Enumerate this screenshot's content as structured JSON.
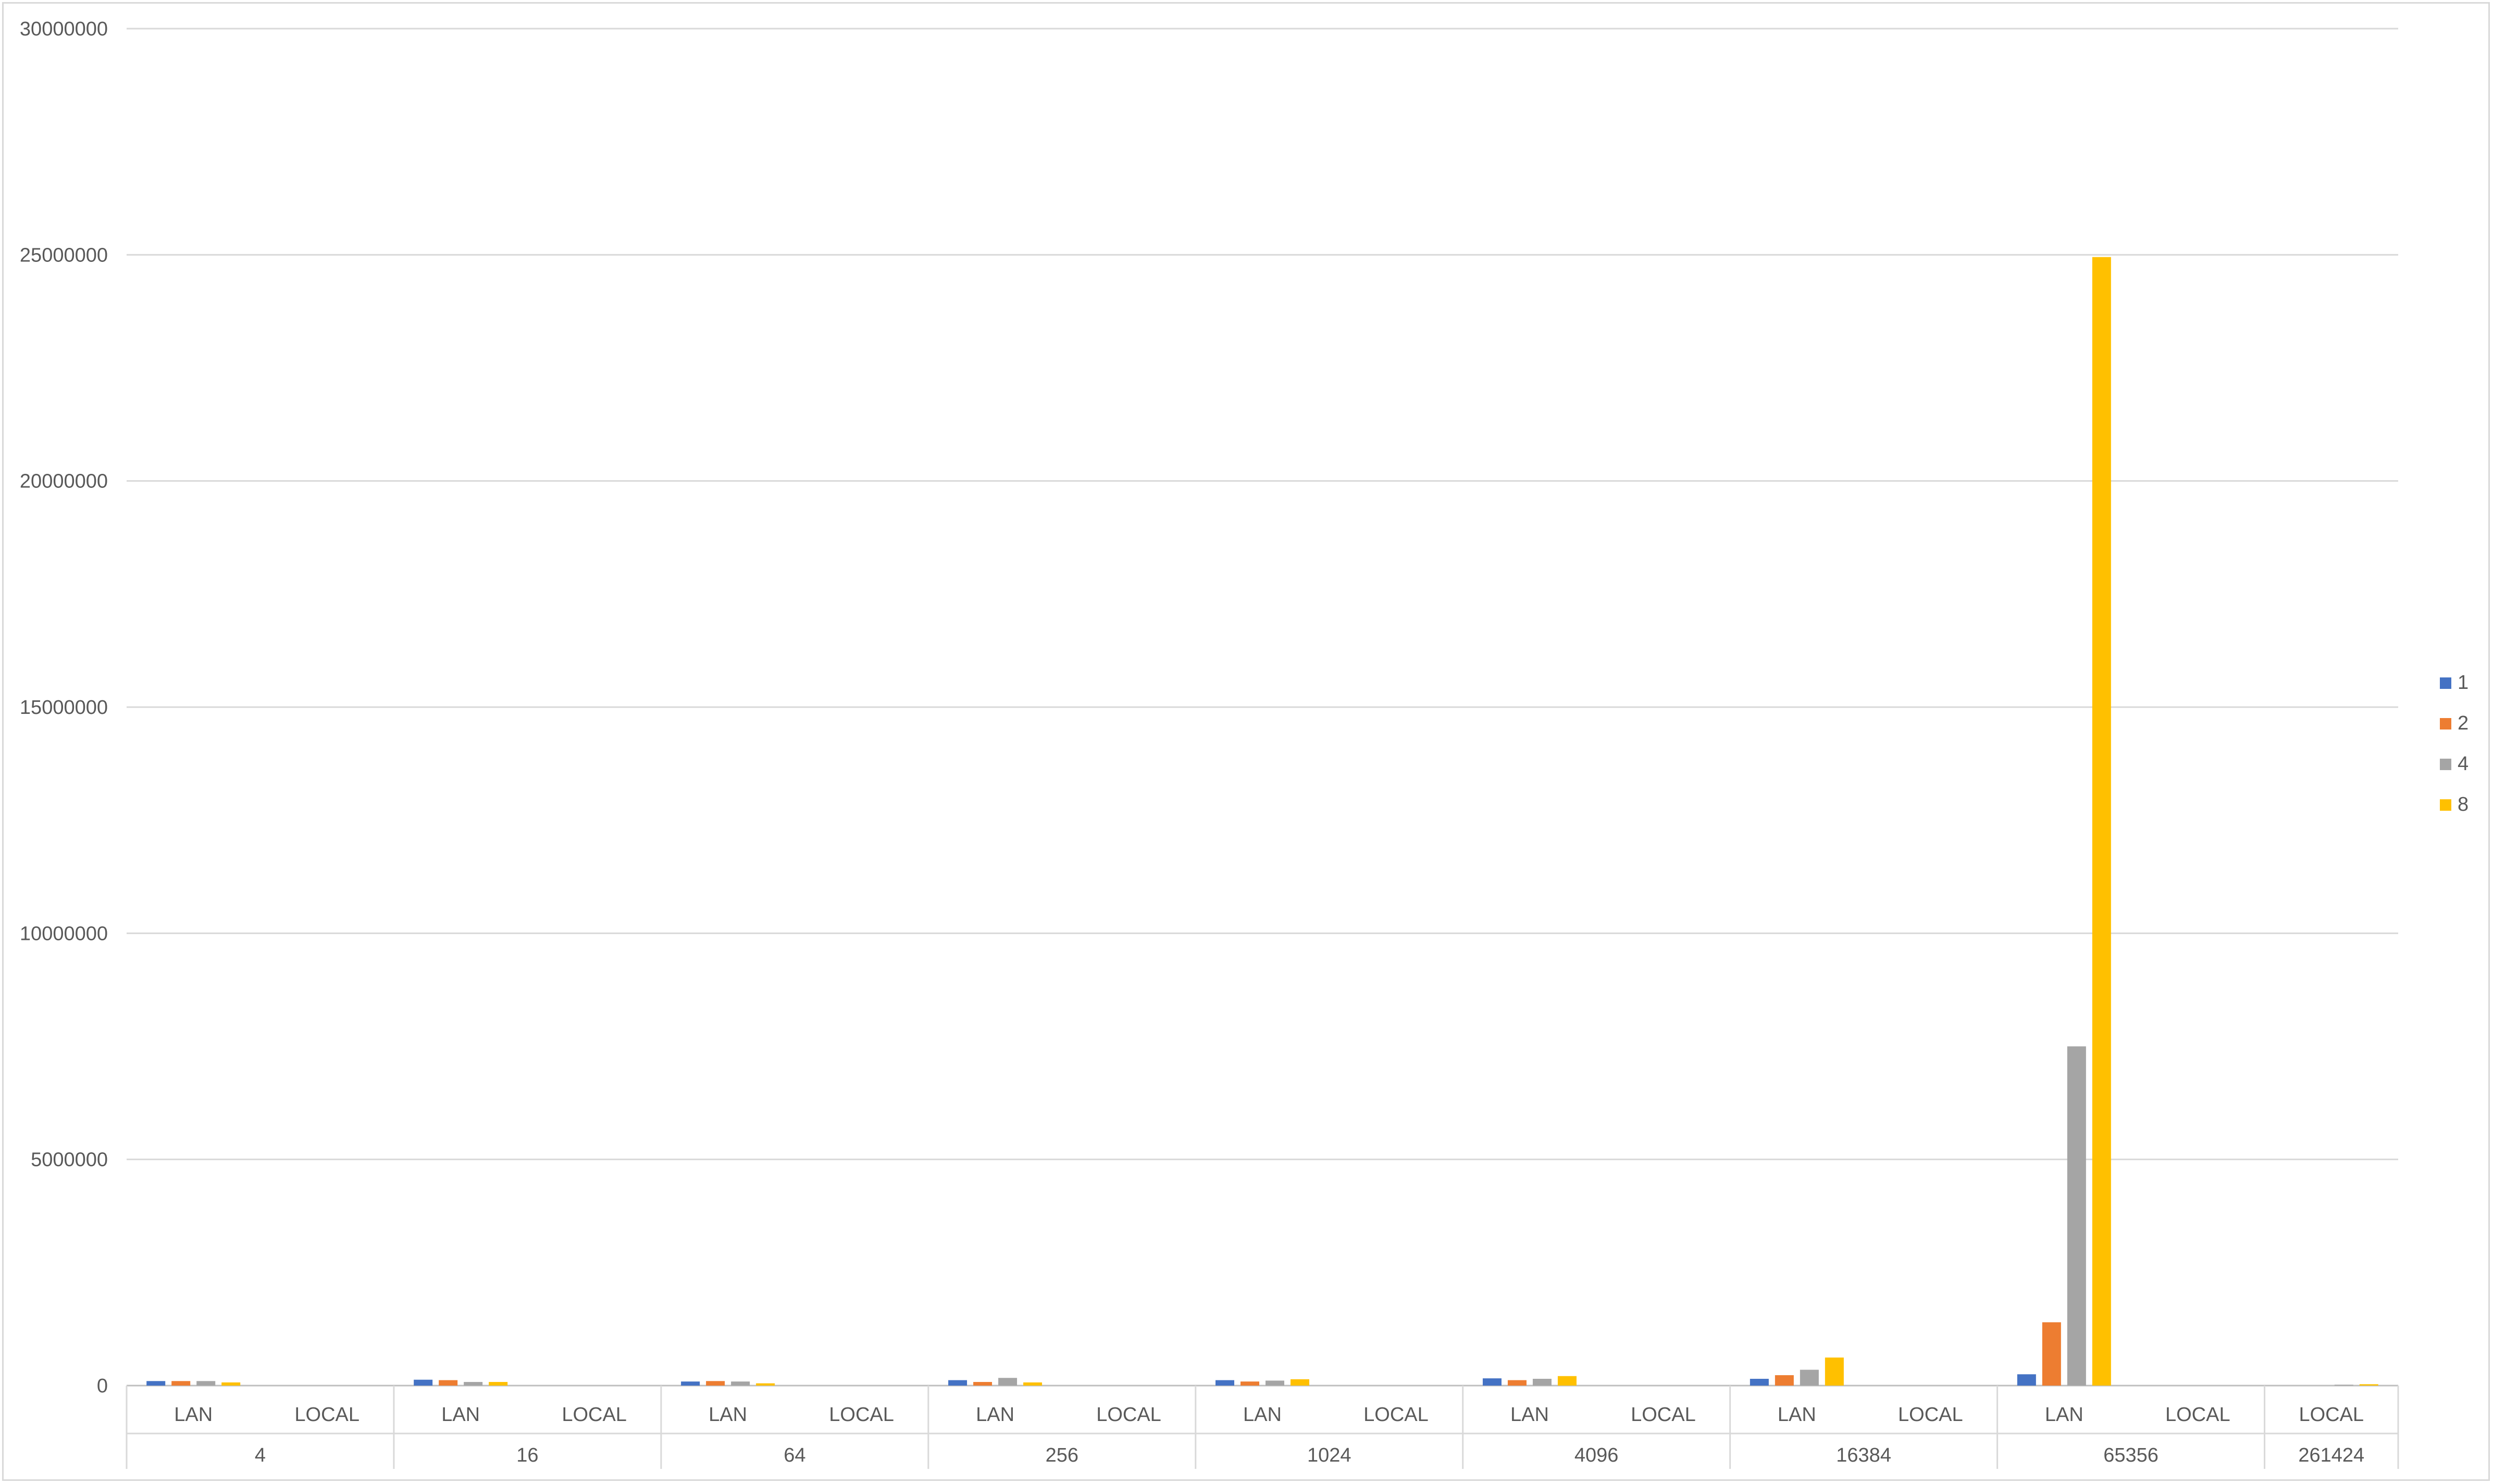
{
  "chart_data": {
    "type": "bar",
    "title": "",
    "xlabel": "",
    "ylabel": "",
    "ylim": [
      0,
      30000000
    ],
    "y_ticks": [
      0,
      5000000,
      10000000,
      15000000,
      20000000,
      25000000,
      30000000
    ],
    "y_tick_labels": [
      "0",
      "5000000",
      "10000000",
      "15000000",
      "20000000",
      "25000000",
      "30000000"
    ],
    "grid": true,
    "legend_position": "right",
    "groups": [
      {
        "label": "4",
        "categories": [
          "LAN",
          "LOCAL"
        ]
      },
      {
        "label": "16",
        "categories": [
          "LAN",
          "LOCAL"
        ]
      },
      {
        "label": "64",
        "categories": [
          "LAN",
          "LOCAL"
        ]
      },
      {
        "label": "256",
        "categories": [
          "LAN",
          "LOCAL"
        ]
      },
      {
        "label": "1024",
        "categories": [
          "LAN",
          "LOCAL"
        ]
      },
      {
        "label": "4096",
        "categories": [
          "LAN",
          "LOCAL"
        ]
      },
      {
        "label": "16384",
        "categories": [
          "LAN",
          "LOCAL"
        ]
      },
      {
        "label": "65356",
        "categories": [
          "LAN",
          "LOCAL"
        ]
      },
      {
        "label": "261424",
        "categories": [
          "LOCAL"
        ]
      }
    ],
    "series": [
      {
        "name": "1",
        "color": "#4472C4",
        "values": [
          100000,
          0,
          130000,
          0,
          90000,
          0,
          120000,
          0,
          120000,
          0,
          160000,
          0,
          150000,
          0,
          250000,
          0,
          0
        ]
      },
      {
        "name": "2",
        "color": "#ED7D31",
        "values": [
          100000,
          0,
          120000,
          0,
          100000,
          0,
          80000,
          0,
          90000,
          0,
          120000,
          0,
          230000,
          0,
          1400000,
          0,
          0
        ]
      },
      {
        "name": "4",
        "color": "#A5A5A5",
        "values": [
          100000,
          0,
          80000,
          0,
          90000,
          0,
          170000,
          0,
          110000,
          0,
          150000,
          0,
          350000,
          0,
          7500000,
          0,
          20000
        ]
      },
      {
        "name": "8",
        "color": "#FFC000",
        "values": [
          70000,
          0,
          80000,
          0,
          50000,
          0,
          70000,
          0,
          140000,
          0,
          210000,
          0,
          620000,
          0,
          24950000,
          0,
          30000
        ]
      }
    ]
  }
}
